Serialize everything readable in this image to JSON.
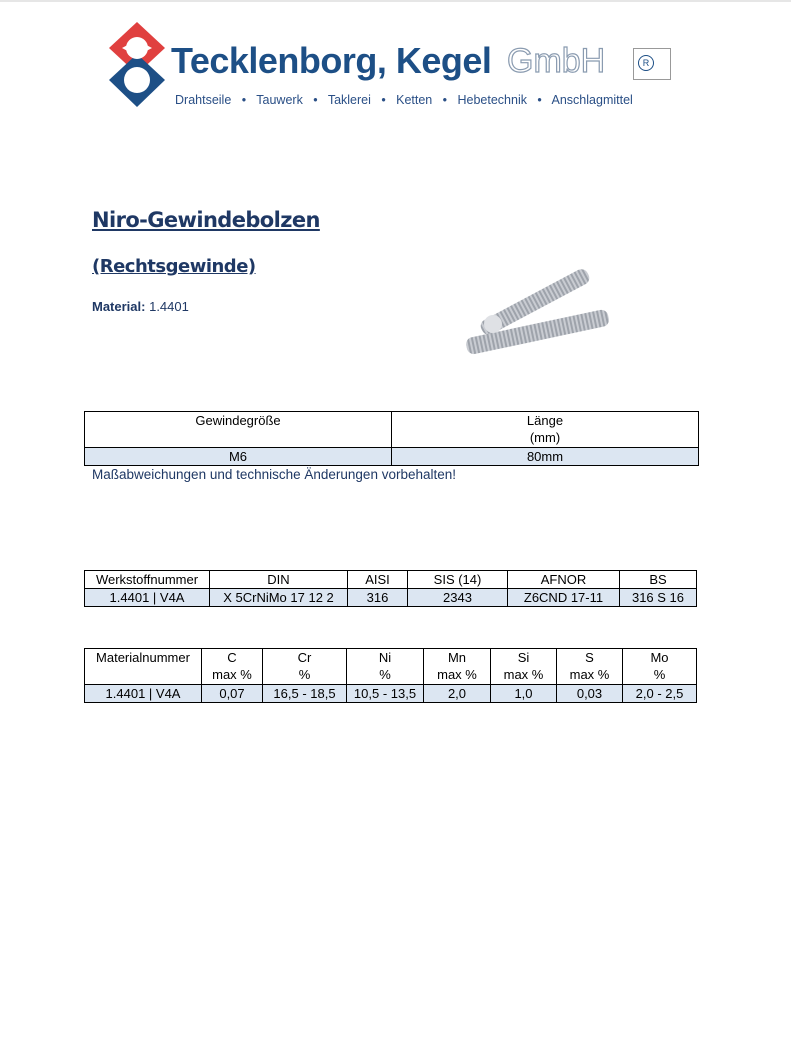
{
  "header": {
    "brand": "Tecklenborg, Kegel",
    "brand_suffix": "GmbH",
    "services": [
      "Drahtseile",
      "Tauwerk",
      "Taklerei",
      "Ketten",
      "Hebetechnik",
      "Anschlagmittel"
    ],
    "colors": {
      "blue": "#1d4f86",
      "red": "#e0403f"
    }
  },
  "title": "Niro-Gewindebolzen",
  "subtitle": "(Rechtsgewinde)",
  "material": {
    "label": "Material:",
    "value": "1.4401"
  },
  "size_table": {
    "headers": [
      "Gewindegröße",
      "Länge",
      "(mm)"
    ],
    "rows": [
      [
        "M6",
        "80mm"
      ]
    ]
  },
  "note": "Maßabweichungen und technische Änderungen vorbehalten!",
  "standards_table": {
    "headers": [
      "Werkstoffnummer",
      "DIN",
      "AISI",
      "SIS (14)",
      "AFNOR",
      "BS"
    ],
    "rows": [
      [
        "1.4401 | V4A",
        "X 5CrNiMo 17 12 2",
        "316",
        "2343",
        "Z6CND 17-11",
        "316 S 16"
      ]
    ]
  },
  "composition_table": {
    "headers": [
      [
        "Materialnummer",
        ""
      ],
      [
        "C",
        "max %"
      ],
      [
        "Cr",
        "%"
      ],
      [
        "Ni",
        "%"
      ],
      [
        "Mn",
        "max %"
      ],
      [
        "Si",
        "max %"
      ],
      [
        "S",
        "max %"
      ],
      [
        "Mo",
        "%"
      ]
    ],
    "rows": [
      [
        "1.4401 | V4A",
        "0,07",
        "16,5 - 18,5",
        "10,5 - 13,5",
        "2,0",
        "1,0",
        "0,03",
        "2,0 - 2,5"
      ]
    ]
  },
  "row_color": "#dce6f2"
}
